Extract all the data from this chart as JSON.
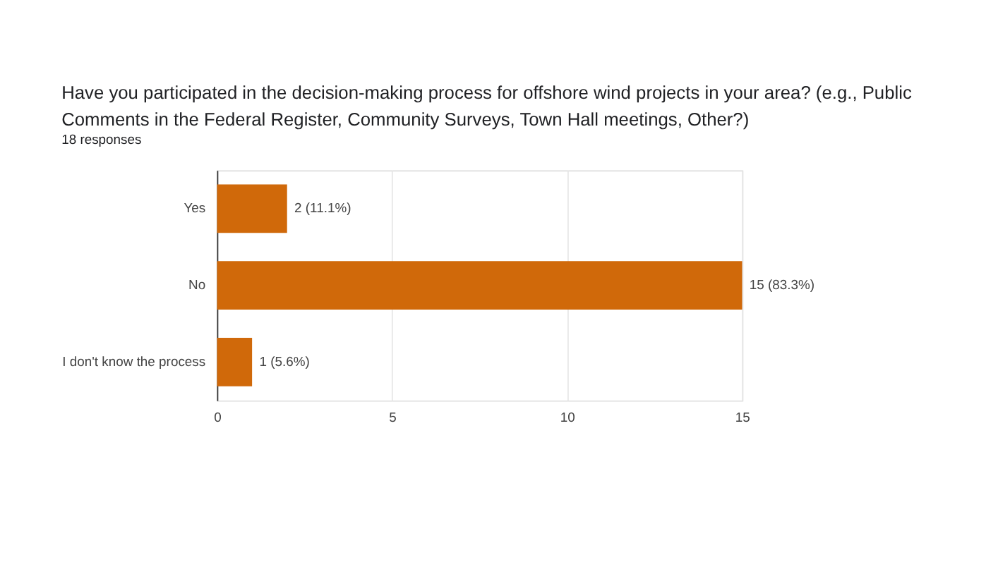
{
  "chart_data": {
    "type": "bar",
    "orientation": "horizontal",
    "title": "Have you participated in the decision-making process for offshore wind projects in your area? (e.g., Public Comments in the Federal Register, Community Surveys, Town Hall meetings, Other?)",
    "subtitle": "18 responses",
    "categories": [
      "Yes",
      "No",
      "I don't know the process"
    ],
    "values": [
      2,
      15,
      1
    ],
    "value_labels": [
      "2 (11.1%)",
      "15 (83.3%)",
      "1 (5.6%)"
    ],
    "color": "#d0690a",
    "xlim": [
      0,
      15
    ],
    "xticks": [
      0,
      5,
      10,
      15
    ],
    "grid": "x"
  }
}
